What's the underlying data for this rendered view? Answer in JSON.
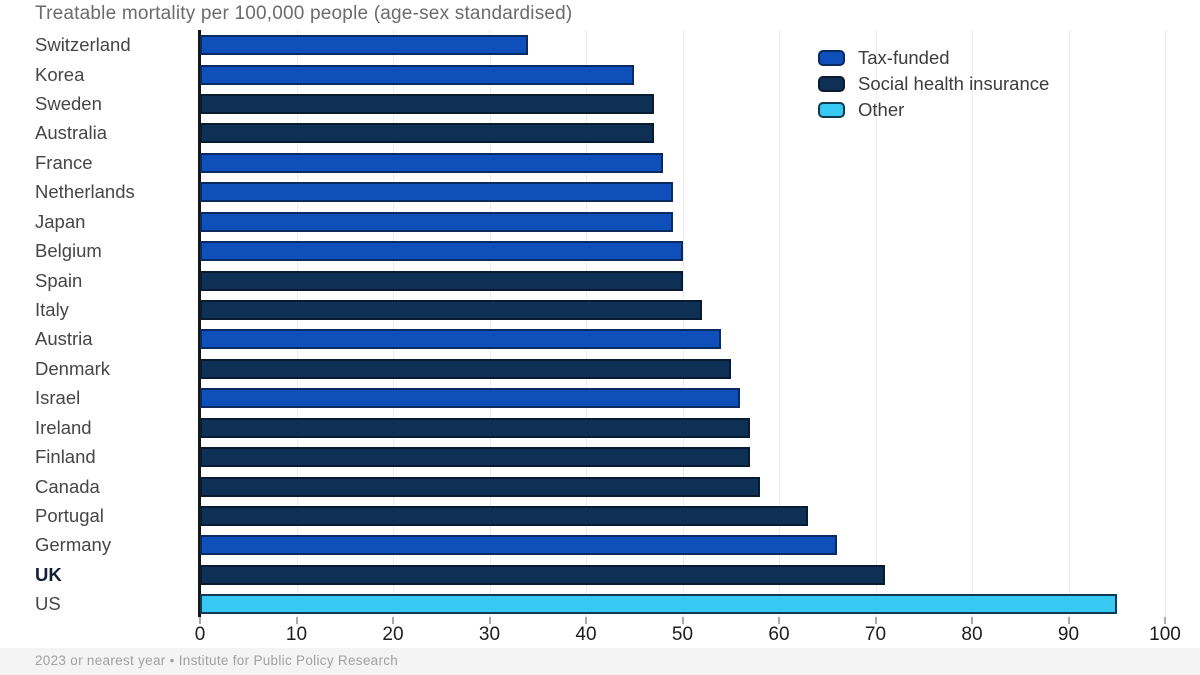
{
  "title": "Treatable mortality per 100,000 people (age-sex standardised)",
  "footer": "2023 or nearest year • Institute for Public Policy Research",
  "legend": [
    {
      "label": "Tax-funded",
      "color": "#0f4fba",
      "border_color": "#0b2a60"
    },
    {
      "label": "Social health insurance",
      "color": "#0e3055",
      "border_color": "#071c30"
    },
    {
      "label": "Other",
      "color": "#38c9f2",
      "border_color": "#0e3a52"
    }
  ],
  "chart_data": {
    "type": "bar",
    "orientation": "horizontal",
    "title": "Treatable mortality per 100,000 people (age-sex standardised)",
    "xlabel": "",
    "ylabel": "",
    "xlim": [
      0,
      100
    ],
    "xticks": [
      0,
      10,
      20,
      30,
      40,
      50,
      60,
      70,
      80,
      90,
      100
    ],
    "grid": "vertical",
    "legend_position": "top-right",
    "bold_category": "UK",
    "categories": [
      "Switzerland",
      "Korea",
      "Sweden",
      "Australia",
      "France",
      "Netherlands",
      "Japan",
      "Belgium",
      "Spain",
      "Italy",
      "Austria",
      "Denmark",
      "Israel",
      "Ireland",
      "Finland",
      "Canada",
      "Portugal",
      "Germany",
      "UK",
      "US"
    ],
    "values": [
      34,
      45,
      47,
      47,
      48,
      49,
      49,
      50,
      50,
      52,
      54,
      55,
      56,
      57,
      57,
      58,
      63,
      66,
      71,
      95
    ],
    "series": [
      "Tax-funded",
      "Tax-funded",
      "Social health insurance",
      "Social health insurance",
      "Tax-funded",
      "Tax-funded",
      "Tax-funded",
      "Tax-funded",
      "Social health insurance",
      "Social health insurance",
      "Tax-funded",
      "Social health insurance",
      "Tax-funded",
      "Social health insurance",
      "Social health insurance",
      "Social health insurance",
      "Social health insurance",
      "Tax-funded",
      "Social health insurance",
      "Other"
    ],
    "source_note": "2023 or nearest year • Institute for Public Policy Research"
  }
}
